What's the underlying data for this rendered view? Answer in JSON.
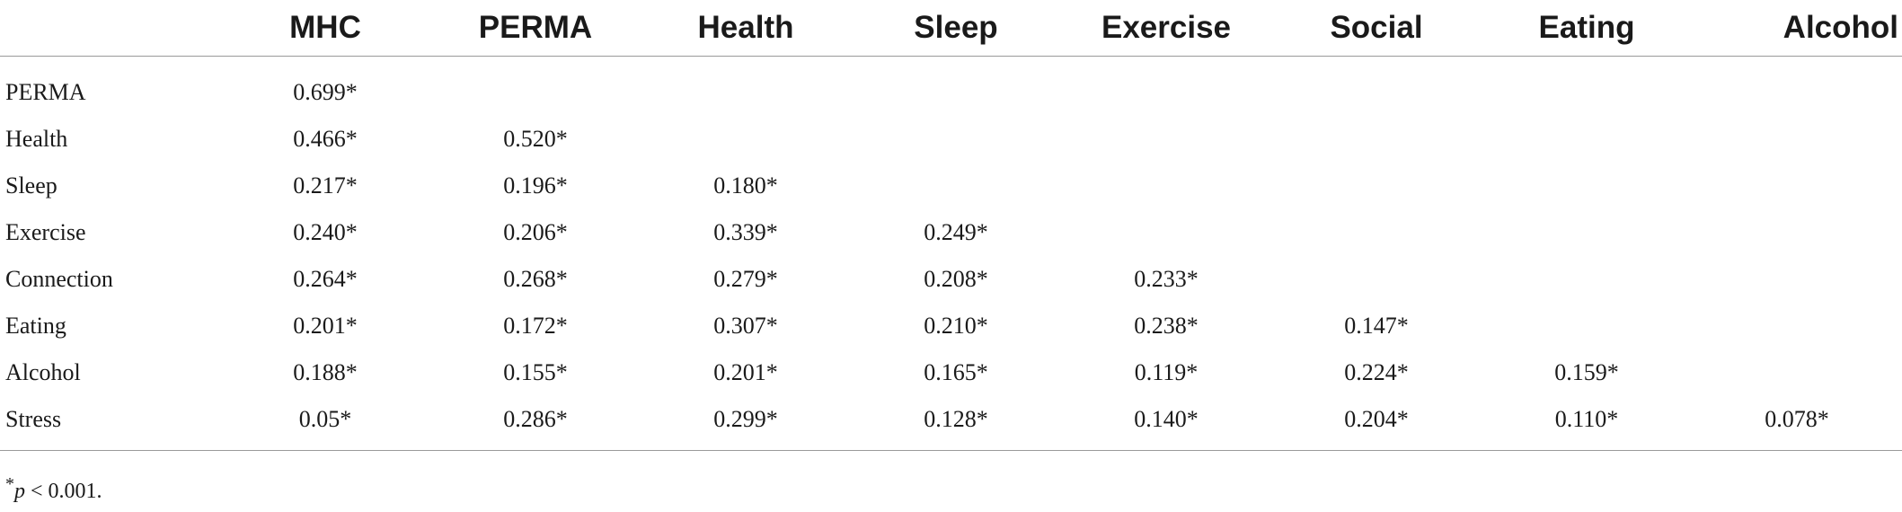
{
  "table": {
    "header_corner": "",
    "columns": [
      "MHC",
      "PERMA",
      "Health",
      "Sleep",
      "Exercise",
      "Social",
      "Eating",
      "Alcohol"
    ],
    "rows": [
      {
        "label": "PERMA",
        "cells": [
          "0.699*",
          "",
          "",
          "",
          "",
          "",
          "",
          ""
        ]
      },
      {
        "label": "Health",
        "cells": [
          "0.466*",
          "0.520*",
          "",
          "",
          "",
          "",
          "",
          ""
        ]
      },
      {
        "label": "Sleep",
        "cells": [
          "0.217*",
          "0.196*",
          "0.180*",
          "",
          "",
          "",
          "",
          ""
        ]
      },
      {
        "label": "Exercise",
        "cells": [
          "0.240*",
          "0.206*",
          "0.339*",
          "0.249*",
          "",
          "",
          "",
          ""
        ]
      },
      {
        "label": "Connection",
        "cells": [
          "0.264*",
          "0.268*",
          "0.279*",
          "0.208*",
          "0.233*",
          "",
          "",
          ""
        ]
      },
      {
        "label": "Eating",
        "cells": [
          "0.201*",
          "0.172*",
          "0.307*",
          "0.210*",
          "0.238*",
          "0.147*",
          "",
          ""
        ]
      },
      {
        "label": "Alcohol",
        "cells": [
          "0.188*",
          "0.155*",
          "0.201*",
          "0.165*",
          "0.119*",
          "0.224*",
          "0.159*",
          ""
        ]
      },
      {
        "label": "Stress",
        "cells": [
          "0.05*",
          "0.286*",
          "0.299*",
          "0.128*",
          "0.140*",
          "0.204*",
          "0.110*",
          "0.078*"
        ]
      }
    ]
  },
  "footnote": {
    "marker": "*",
    "variable": "p",
    "text": " < 0.001."
  }
}
